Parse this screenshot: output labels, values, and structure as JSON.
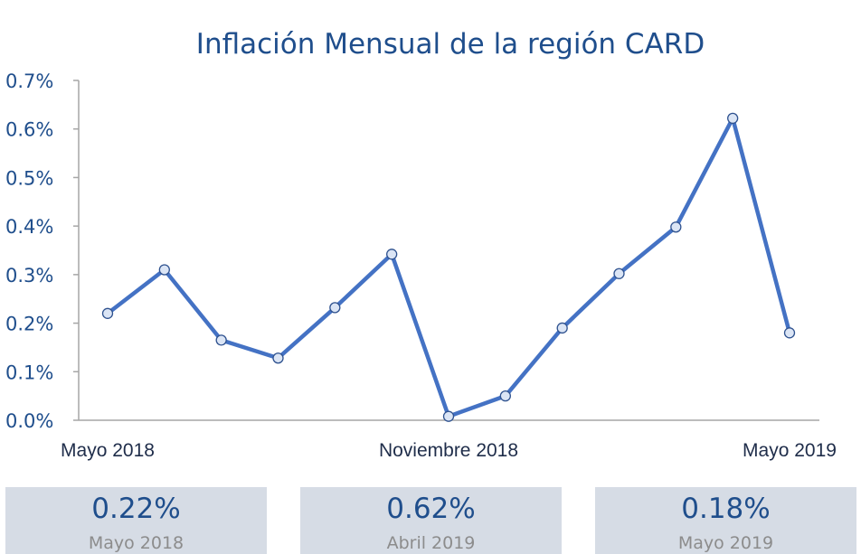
{
  "chart_data": {
    "type": "line",
    "title": "Inflación Mensual de la región CARD",
    "xlabel": "",
    "ylabel": "",
    "ylim": [
      0,
      0.7
    ],
    "yticks": [
      "0.0%",
      "0.1%",
      "0.2%",
      "0.3%",
      "0.4%",
      "0.5%",
      "0.6%",
      "0.7%"
    ],
    "xtick_labels": [
      "Mayo 2018",
      "Noviembre 2018",
      "Mayo 2019"
    ],
    "grid": false,
    "series": [
      {
        "values": [
          0.22,
          0.31,
          0.165,
          0.128,
          0.232,
          0.342,
          0.008,
          0.05,
          0.19,
          0.302,
          0.398,
          0.622,
          0.18
        ],
        "color": "#4472c4"
      }
    ]
  },
  "cards": [
    {
      "value": "0.22%",
      "label": "Mayo 2018"
    },
    {
      "value": "0.62%",
      "label": "Abril 2019"
    },
    {
      "value": "0.18%",
      "label": "Mayo 2019"
    }
  ],
  "colors": {
    "line": "#4472c4",
    "marker_fill": "#dbe5f5",
    "card_bg": "#d6dce5",
    "accent": "#1f4e8c"
  }
}
